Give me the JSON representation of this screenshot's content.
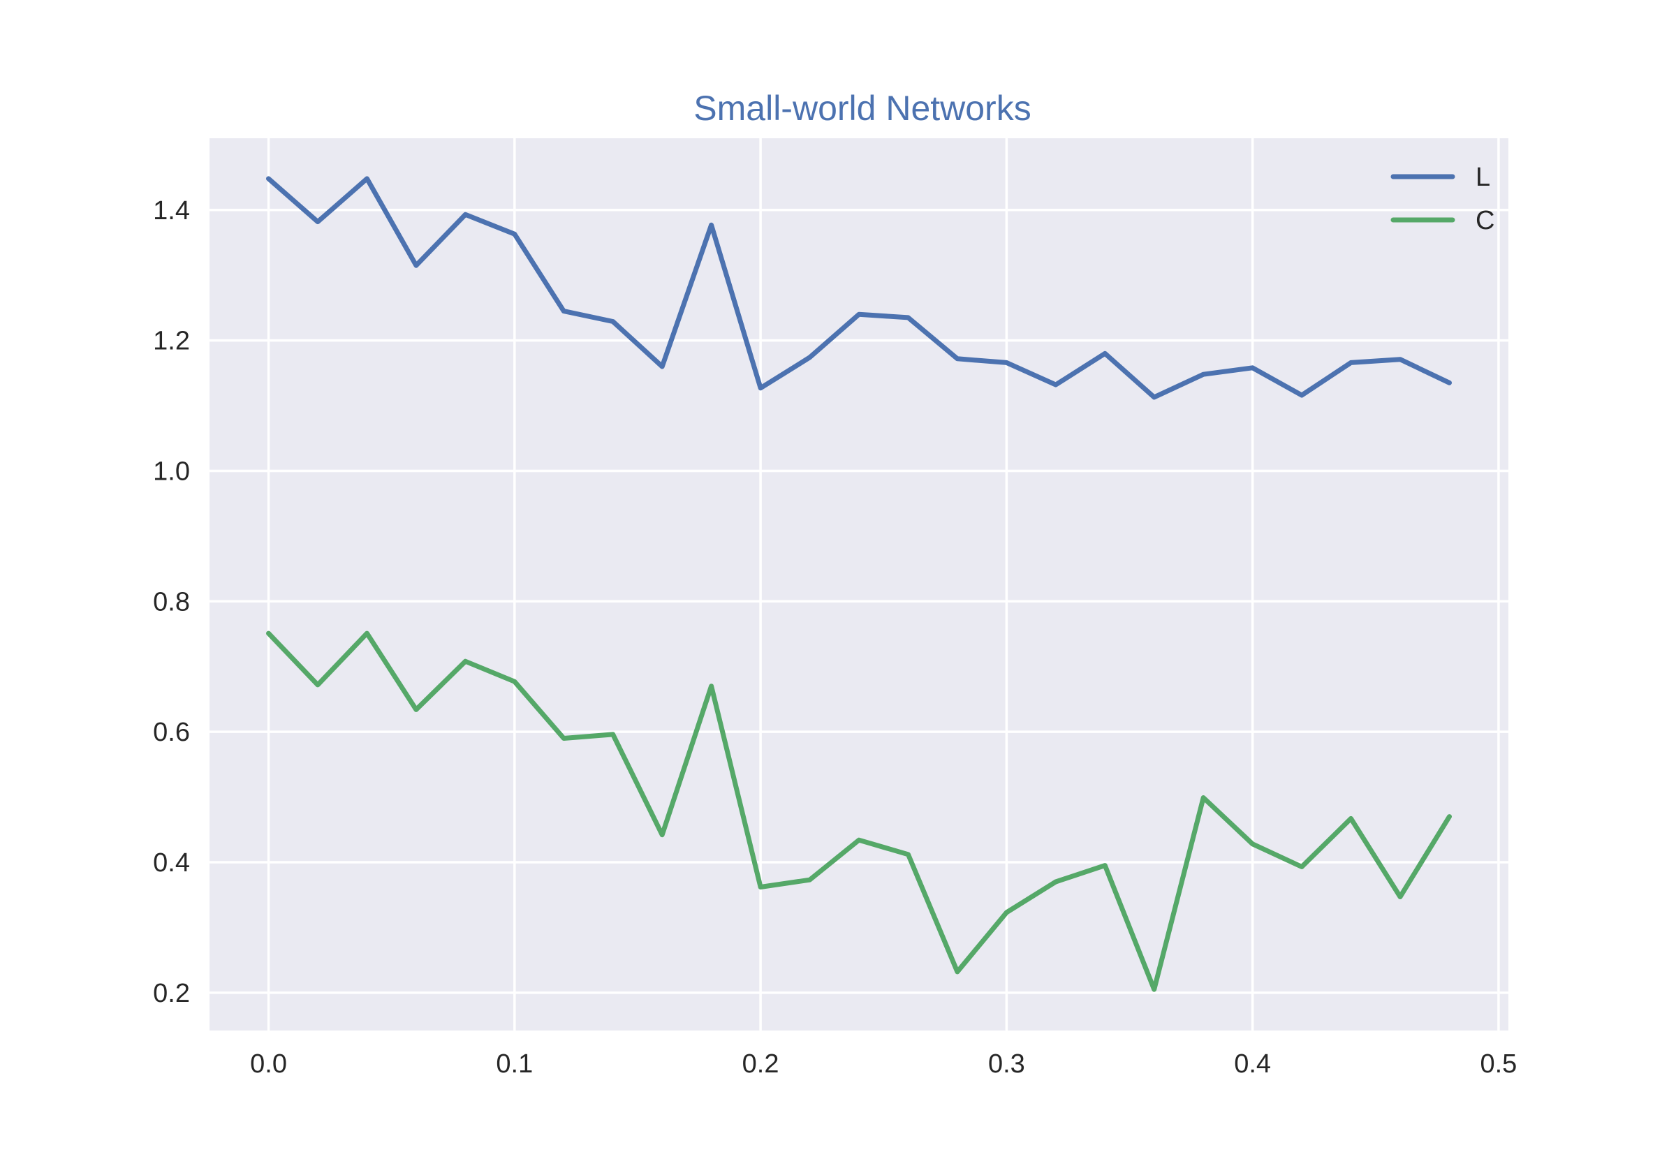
{
  "chart_data": {
    "type": "line",
    "title": "Small-world Networks",
    "xlabel": "",
    "ylabel": "",
    "x": [
      0.0,
      0.02,
      0.04,
      0.06,
      0.08,
      0.1,
      0.12,
      0.14,
      0.16,
      0.18,
      0.2,
      0.22,
      0.24,
      0.26,
      0.28,
      0.3,
      0.32,
      0.34,
      0.36,
      0.38,
      0.4,
      0.42,
      0.44,
      0.46,
      0.48
    ],
    "series": [
      {
        "name": "L",
        "color": "#4c72b0",
        "values": [
          1.448,
          1.382,
          1.448,
          1.315,
          1.393,
          1.363,
          1.245,
          1.229,
          1.16,
          1.377,
          1.127,
          1.174,
          1.24,
          1.235,
          1.172,
          1.166,
          1.132,
          1.18,
          1.113,
          1.148,
          1.158,
          1.116,
          1.166,
          1.171,
          1.135
        ]
      },
      {
        "name": "C",
        "color": "#55a868",
        "values": [
          0.751,
          0.672,
          0.751,
          0.634,
          0.708,
          0.677,
          0.59,
          0.596,
          0.442,
          0.67,
          0.362,
          0.373,
          0.434,
          0.412,
          0.232,
          0.323,
          0.37,
          0.395,
          0.205,
          0.499,
          0.428,
          0.393,
          0.467,
          0.347,
          0.47
        ]
      }
    ],
    "xlim": [
      -0.024,
      0.504
    ],
    "ylim": [
      0.142,
      1.51
    ],
    "xticks": [
      "0.0",
      "0.1",
      "0.2",
      "0.3",
      "0.4",
      "0.5"
    ],
    "yticks": [
      "0.2",
      "0.4",
      "0.6",
      "0.8",
      "1.0",
      "1.2",
      "1.4"
    ],
    "grid": true,
    "legend": "top-right",
    "colors": {
      "title": "#4c72b0",
      "plot_background": "#eaeaf2",
      "grid": "#ffffff",
      "text": "#262626"
    }
  }
}
